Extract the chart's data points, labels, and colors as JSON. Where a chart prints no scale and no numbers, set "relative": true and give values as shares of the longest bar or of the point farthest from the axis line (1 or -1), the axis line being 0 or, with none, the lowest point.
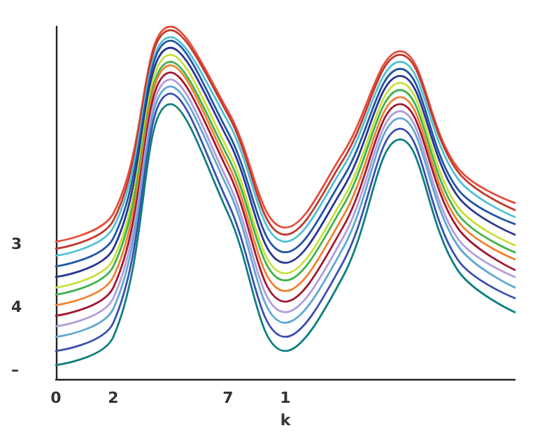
{
  "chart_data": {
    "type": "line",
    "xlabel": "k",
    "relative": true,
    "categories": [
      "0",
      "2",
      null,
      "7",
      "1",
      null,
      null,
      null,
      null
    ],
    "annotations": [
      "3",
      "4",
      "–"
    ],
    "grid": false,
    "marker": "none",
    "line_style": "solid",
    "series": [
      {
        "color": "#e74c3c",
        "values": [
          0.39,
          0.47,
          1.0,
          0.76,
          0.43,
          0.64,
          0.93,
          0.6,
          0.5
        ]
      },
      {
        "color": "#c0392b",
        "values": [
          0.37,
          0.45,
          0.99,
          0.75,
          0.41,
          0.62,
          0.92,
          0.59,
          0.48
        ]
      },
      {
        "color": "#4fc1d6",
        "values": [
          0.35,
          0.43,
          0.97,
          0.73,
          0.39,
          0.6,
          0.9,
          0.57,
          0.46
        ]
      },
      {
        "color": "#2255a4",
        "values": [
          0.32,
          0.4,
          0.96,
          0.7,
          0.36,
          0.57,
          0.88,
          0.54,
          0.44
        ]
      },
      {
        "color": "#283593",
        "values": [
          0.29,
          0.37,
          0.94,
          0.68,
          0.33,
          0.54,
          0.86,
          0.52,
          0.41
        ]
      },
      {
        "color": "#c6e03a",
        "values": [
          0.26,
          0.34,
          0.92,
          0.65,
          0.3,
          0.51,
          0.84,
          0.49,
          0.38
        ]
      },
      {
        "color": "#3cb44b",
        "values": [
          0.24,
          0.32,
          0.9,
          0.63,
          0.28,
          0.49,
          0.82,
          0.47,
          0.36
        ]
      },
      {
        "color": "#f08030",
        "values": [
          0.21,
          0.29,
          0.89,
          0.61,
          0.25,
          0.46,
          0.8,
          0.45,
          0.34
        ]
      },
      {
        "color": "#a01830",
        "values": [
          0.18,
          0.26,
          0.87,
          0.59,
          0.22,
          0.43,
          0.78,
          0.43,
          0.31
        ]
      },
      {
        "color": "#b39ddb",
        "values": [
          0.15,
          0.23,
          0.85,
          0.56,
          0.19,
          0.4,
          0.76,
          0.4,
          0.29
        ]
      },
      {
        "color": "#5fa8d3",
        "values": [
          0.12,
          0.2,
          0.83,
          0.54,
          0.16,
          0.37,
          0.74,
          0.38,
          0.26
        ]
      },
      {
        "color": "#3a4fb0",
        "values": [
          0.08,
          0.16,
          0.81,
          0.5,
          0.12,
          0.33,
          0.71,
          0.34,
          0.23
        ]
      },
      {
        "color": "#0f7f7f",
        "values": [
          0.04,
          0.12,
          0.78,
          0.47,
          0.08,
          0.29,
          0.68,
          0.31,
          0.19
        ]
      }
    ]
  }
}
